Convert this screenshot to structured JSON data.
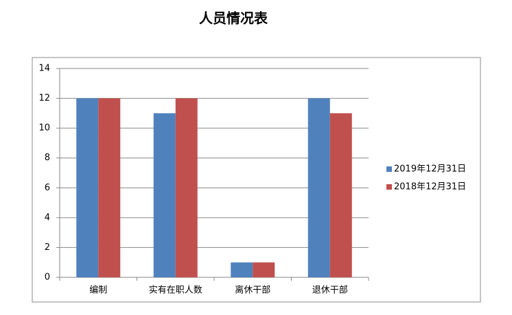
{
  "chart_data": {
    "type": "bar",
    "title": "人员情况表",
    "categories": [
      "编制",
      "实有在职人数",
      "离休干部",
      "退休干部"
    ],
    "series": [
      {
        "name": "2019年12月31日",
        "color": "#4f81bd",
        "values": [
          12,
          11,
          1,
          12
        ]
      },
      {
        "name": "2018年12月31日",
        "color": "#c0504d",
        "values": [
          12,
          12,
          1,
          11
        ]
      }
    ],
    "ylim": [
      0,
      14
    ],
    "yticks": [
      0,
      2,
      4,
      6,
      8,
      10,
      12,
      14
    ],
    "grid": true,
    "legend": "right"
  }
}
